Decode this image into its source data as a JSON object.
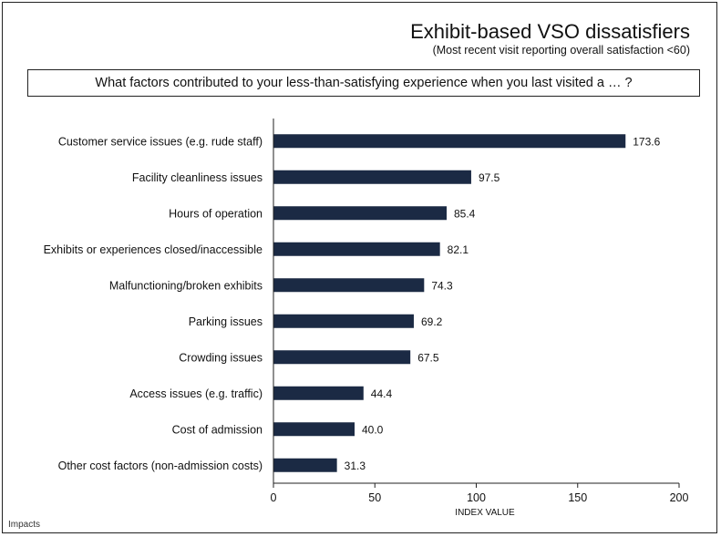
{
  "header": {
    "title": "Exhibit-based VSO dissatisfiers",
    "subtitle": "(Most recent visit reporting overall satisfaction <60)",
    "question": "What factors contributed to your less-than-satisfying experience when you last visited a … ?"
  },
  "footer": {
    "brand": "Impacts"
  },
  "colors": {
    "bar": "#1b2a44",
    "axis": "#222222",
    "text": "#111111"
  },
  "chart_data": {
    "type": "bar",
    "orientation": "horizontal",
    "categories": [
      "Customer service issues (e.g. rude staff)",
      "Facility cleanliness issues",
      "Hours of operation",
      "Exhibits or experiences closed/inaccessible",
      "Malfunctioning/broken exhibits",
      "Parking issues",
      "Crowding issues",
      "Access issues (e.g. traffic)",
      "Cost of admission",
      "Other cost factors (non-admission costs)"
    ],
    "values": [
      173.6,
      97.5,
      85.4,
      82.1,
      74.3,
      69.2,
      67.5,
      44.4,
      40.0,
      31.3
    ],
    "value_labels": [
      "173.6",
      "97.5",
      "85.4",
      "82.1",
      "74.3",
      "69.2",
      "67.5",
      "44.4",
      "40.0",
      "31.3"
    ],
    "xlabel": "INDEX VALUE",
    "xlim": [
      0,
      200
    ],
    "xticks": [
      0,
      50,
      100,
      150,
      200
    ],
    "xtick_labels": [
      "0",
      "50",
      "100",
      "150",
      "200"
    ],
    "grid": false,
    "legend": "none"
  }
}
